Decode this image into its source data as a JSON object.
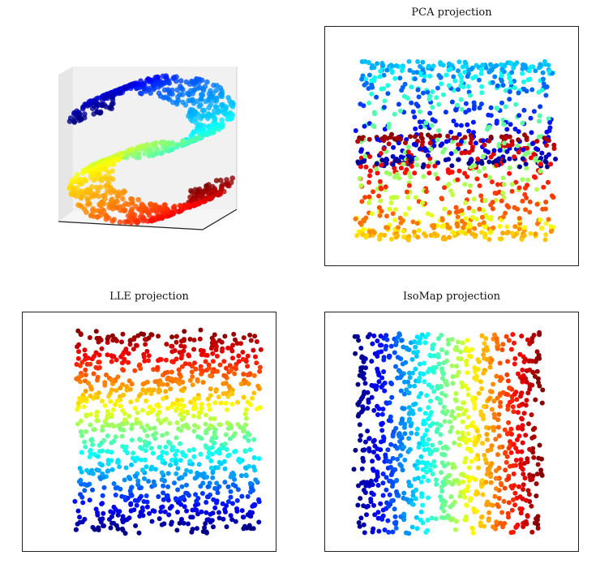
{
  "figure": {
    "panels": [
      {
        "id": "original",
        "title": ""
      },
      {
        "id": "pca",
        "title": "PCA projection"
      },
      {
        "id": "lle",
        "title": "LLE projection"
      },
      {
        "id": "isomap",
        "title": "IsoMap projection"
      }
    ]
  },
  "chart_data": [
    {
      "type": "scatter",
      "title": "",
      "description_of_data": "3D S-curve manifold, points colored by position along the curve (jet colormap)",
      "colormap": "jet",
      "n_points": 1000,
      "grid": false,
      "axes_visible": false
    },
    {
      "type": "scatter",
      "title": "PCA projection",
      "colormap": "jet",
      "n_points": 1000,
      "xticks": [],
      "yticks": [],
      "grid": false
    },
    {
      "type": "scatter",
      "title": "LLE projection",
      "colormap": "jet",
      "n_points": 1000,
      "xticks": [],
      "yticks": [],
      "grid": false
    },
    {
      "type": "scatter",
      "title": "IsoMap projection",
      "colormap": "jet",
      "n_points": 1000,
      "xticks": [],
      "yticks": [],
      "grid": false
    }
  ],
  "colors": {
    "frame": "#222222",
    "pane_left": "#e9e9e9",
    "pane_right": "#f2f2f2",
    "pane_floor": "#f5f5f5"
  }
}
